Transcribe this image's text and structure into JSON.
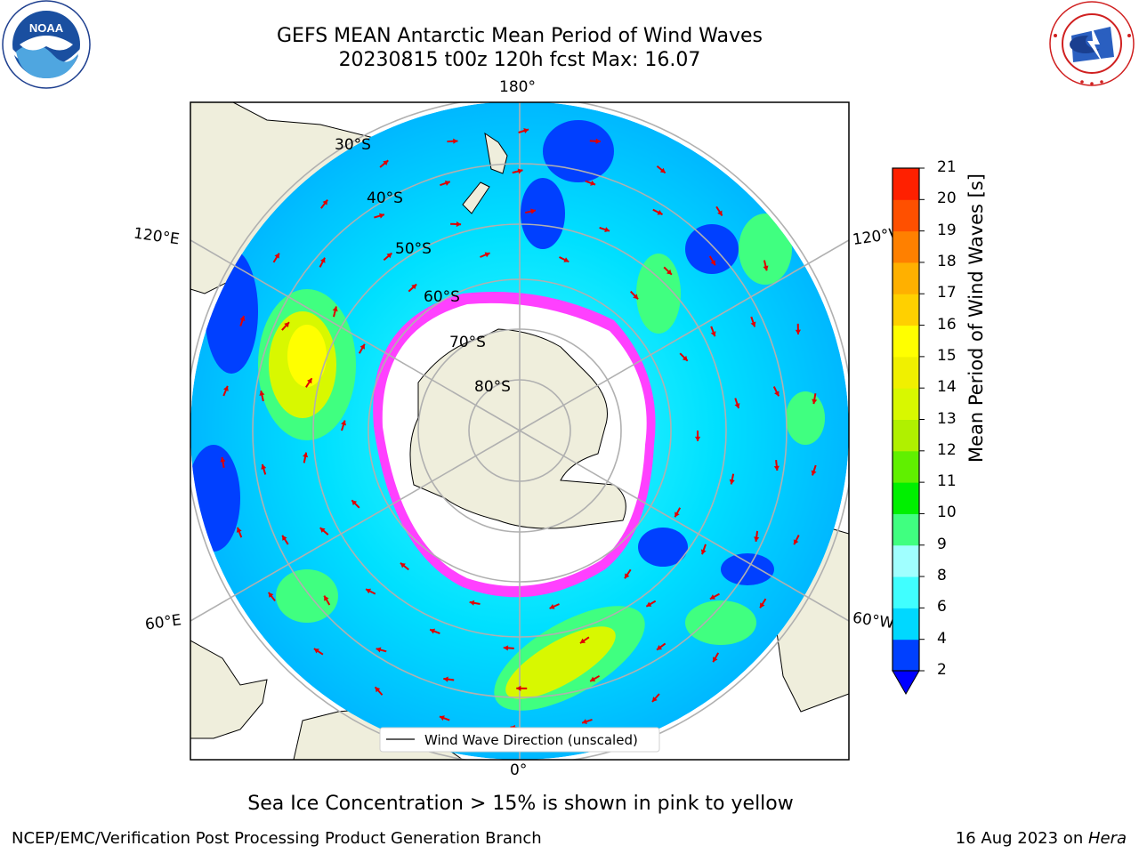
{
  "header": {
    "title_line1": "GEFS MEAN Antarctic Mean Period of Wind Waves",
    "title_line2": "20230815 t00z 120h fcst   Max: 16.07"
  },
  "map": {
    "projection": "south-polar-stereographic",
    "longitude_labels": {
      "top": "180°",
      "bottom": "0°",
      "upper_left": "120°E",
      "upper_right": "120°W",
      "lower_left": "60°E",
      "lower_right": "60°W"
    },
    "latitude_labels": [
      "30°S",
      "40°S",
      "50°S",
      "60°S",
      "70°S",
      "80°S"
    ],
    "legend_label": "Wind Wave Direction (unscaled)",
    "arrow_color": "#e00000"
  },
  "colorbar": {
    "label": "Mean Period of Wind Waves [s]",
    "ticks": [
      "2",
      "4",
      "6",
      "8",
      "9",
      "10",
      "11",
      "12",
      "13",
      "14",
      "15",
      "16",
      "17",
      "18",
      "19",
      "20",
      "21"
    ],
    "colors": [
      "#0040ff",
      "#00d8ff",
      "#40ffff",
      "#a0ffff",
      "#40ff80",
      "#00f000",
      "#60f000",
      "#b0f000",
      "#d8f800",
      "#f0f000",
      "#ffff00",
      "#ffd000",
      "#ffb000",
      "#ff8000",
      "#ff5000",
      "#ff2000",
      "#ff0000"
    ],
    "under_color": "#0000ff"
  },
  "notes": {
    "sea_ice": "Sea Ice Concentration > 15% is shown in pink to yellow"
  },
  "footer": {
    "left": "NCEP/EMC/Verification Post Processing Product Generation Branch",
    "date": "16 Aug 2023 on ",
    "machine": "Hera"
  },
  "logos": {
    "noaa_text": "NOAA",
    "noaa_ring_text": "NATIONAL OCEANIC AND ATMOSPHERIC ADMINISTRATION",
    "nws_ring_text": "NATIONAL WEATHER SERVICE"
  }
}
